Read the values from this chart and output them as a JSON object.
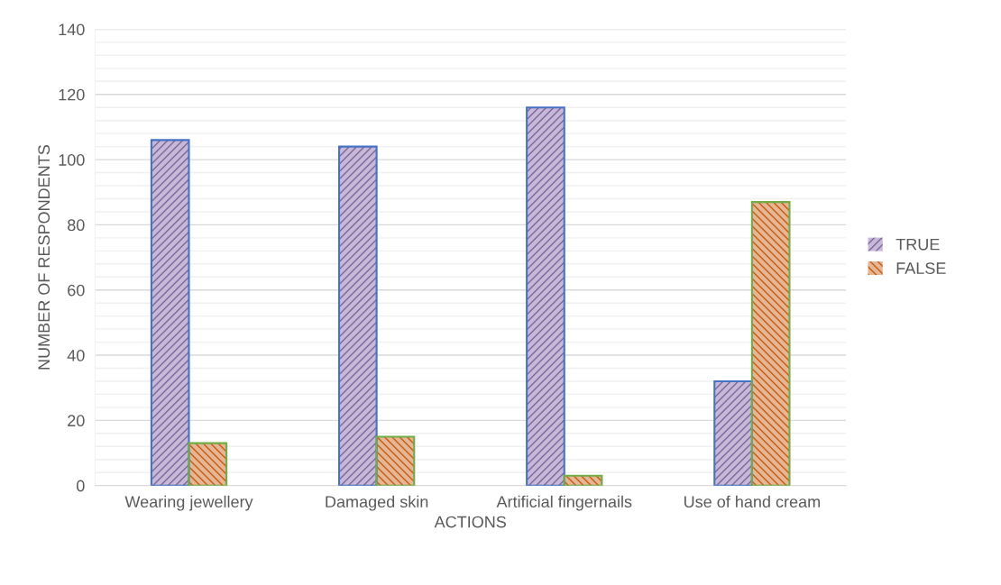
{
  "chart_data": {
    "type": "bar",
    "categories": [
      "Wearing jewellery",
      "Damaged skin",
      "Artificial fingernails",
      "Use of hand cream"
    ],
    "series": [
      {
        "name": "TRUE",
        "color": "#8064a2",
        "values": [
          106,
          104,
          116,
          32
        ]
      },
      {
        "name": "FALSE",
        "color": "#c55a11",
        "values": [
          13,
          15,
          3,
          87
        ]
      }
    ],
    "xlabel": "ACTIONS",
    "ylabel": "NUMBER OF RESPONDENTS",
    "ylim": [
      0,
      140
    ],
    "yticks": [
      0,
      {
        "value": 4,
        "label": null
      },
      {
        "value": 8,
        "label": null
      },
      {
        "value": 12,
        "label": null
      },
      {
        "value": 16,
        "label": null
      },
      20,
      {
        "value": 24,
        "label": null
      },
      {
        "value": 28,
        "label": null
      },
      {
        "value": 32,
        "label": null
      },
      {
        "value": 36,
        "label": null
      },
      40,
      {
        "value": 44,
        "label": null
      },
      {
        "value": 48,
        "label": null
      },
      {
        "value": 52,
        "label": null
      },
      {
        "value": 56,
        "label": null
      },
      60,
      {
        "value": 64,
        "label": null
      },
      {
        "value": 68,
        "label": null
      },
      {
        "value": 72,
        "label": null
      },
      {
        "value": 76,
        "label": null
      },
      80,
      {
        "value": 84,
        "label": null
      },
      {
        "value": 88,
        "label": null
      },
      {
        "value": 92,
        "label": null
      },
      {
        "value": 96,
        "label": null
      },
      100,
      {
        "value": 104,
        "label": null
      },
      {
        "value": 108,
        "label": null
      },
      {
        "value": 112,
        "label": null
      },
      {
        "value": 116,
        "label": null
      },
      120,
      {
        "value": 124,
        "label": null
      },
      {
        "value": 128,
        "label": null
      },
      {
        "value": 132,
        "label": null
      },
      {
        "value": 136,
        "label": null
      },
      140
    ],
    "grid": "y",
    "legend": "right"
  }
}
